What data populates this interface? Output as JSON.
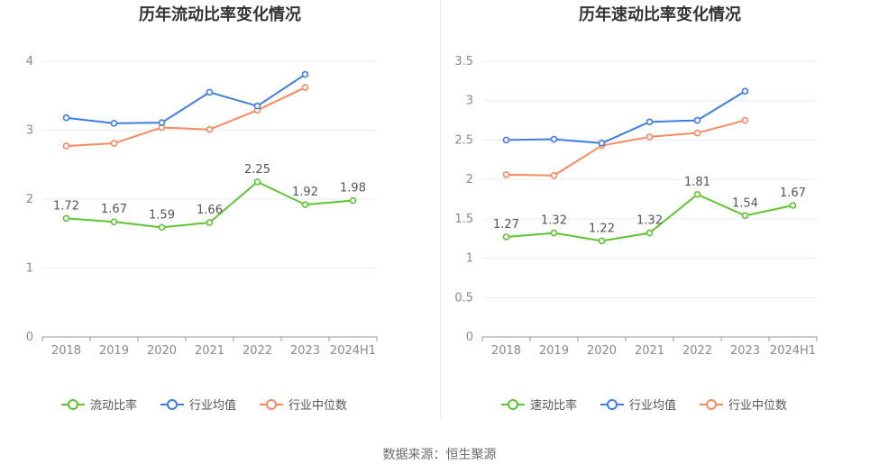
{
  "colors": {
    "company": "#5ec333",
    "industry_avg": "#3f7de0",
    "industry_median": "#f58a61",
    "grid": "#e8ebf5",
    "axis": "#999999"
  },
  "source": "数据来源：恒生聚源",
  "chart_data": [
    {
      "type": "line",
      "title": "历年流动比率变化情况",
      "categories": [
        "2018",
        "2019",
        "2020",
        "2021",
        "2022",
        "2023",
        "2024H1"
      ],
      "ylim": [
        0,
        4
      ],
      "yticks": [
        "0",
        "1",
        "2",
        "3",
        "4"
      ],
      "grid": true,
      "legend_position": "bottom-center",
      "series": [
        {
          "name": "流动比率",
          "values": [
            1.72,
            1.67,
            1.59,
            1.66,
            2.25,
            1.92,
            1.98
          ],
          "labels": [
            "1.72",
            "1.67",
            "1.59",
            "1.66",
            "2.25",
            "1.92",
            "1.98"
          ]
        },
        {
          "name": "行业均值",
          "values": [
            3.18,
            3.1,
            3.11,
            3.55,
            3.35,
            3.81,
            null
          ]
        },
        {
          "name": "行业中位数",
          "values": [
            2.77,
            2.81,
            3.04,
            3.01,
            3.29,
            3.62,
            null
          ]
        }
      ]
    },
    {
      "type": "line",
      "title": "历年速动比率变化情况",
      "categories": [
        "2018",
        "2019",
        "2020",
        "2021",
        "2022",
        "2023",
        "2024H1"
      ],
      "ylim": [
        0,
        3.5
      ],
      "yticks": [
        "0",
        "0.5",
        "1",
        "1.5",
        "2",
        "2.5",
        "3",
        "3.5"
      ],
      "grid": true,
      "legend_position": "bottom-center",
      "series": [
        {
          "name": "速动比率",
          "values": [
            1.27,
            1.32,
            1.22,
            1.32,
            1.81,
            1.54,
            1.67
          ],
          "labels": [
            "1.27",
            "1.32",
            "1.22",
            "1.32",
            "1.81",
            "1.54",
            "1.67"
          ]
        },
        {
          "name": "行业均值",
          "values": [
            2.5,
            2.51,
            2.46,
            2.73,
            2.75,
            3.12,
            null
          ]
        },
        {
          "name": "行业中位数",
          "values": [
            2.06,
            2.05,
            2.43,
            2.54,
            2.59,
            2.75,
            null
          ]
        }
      ]
    }
  ]
}
